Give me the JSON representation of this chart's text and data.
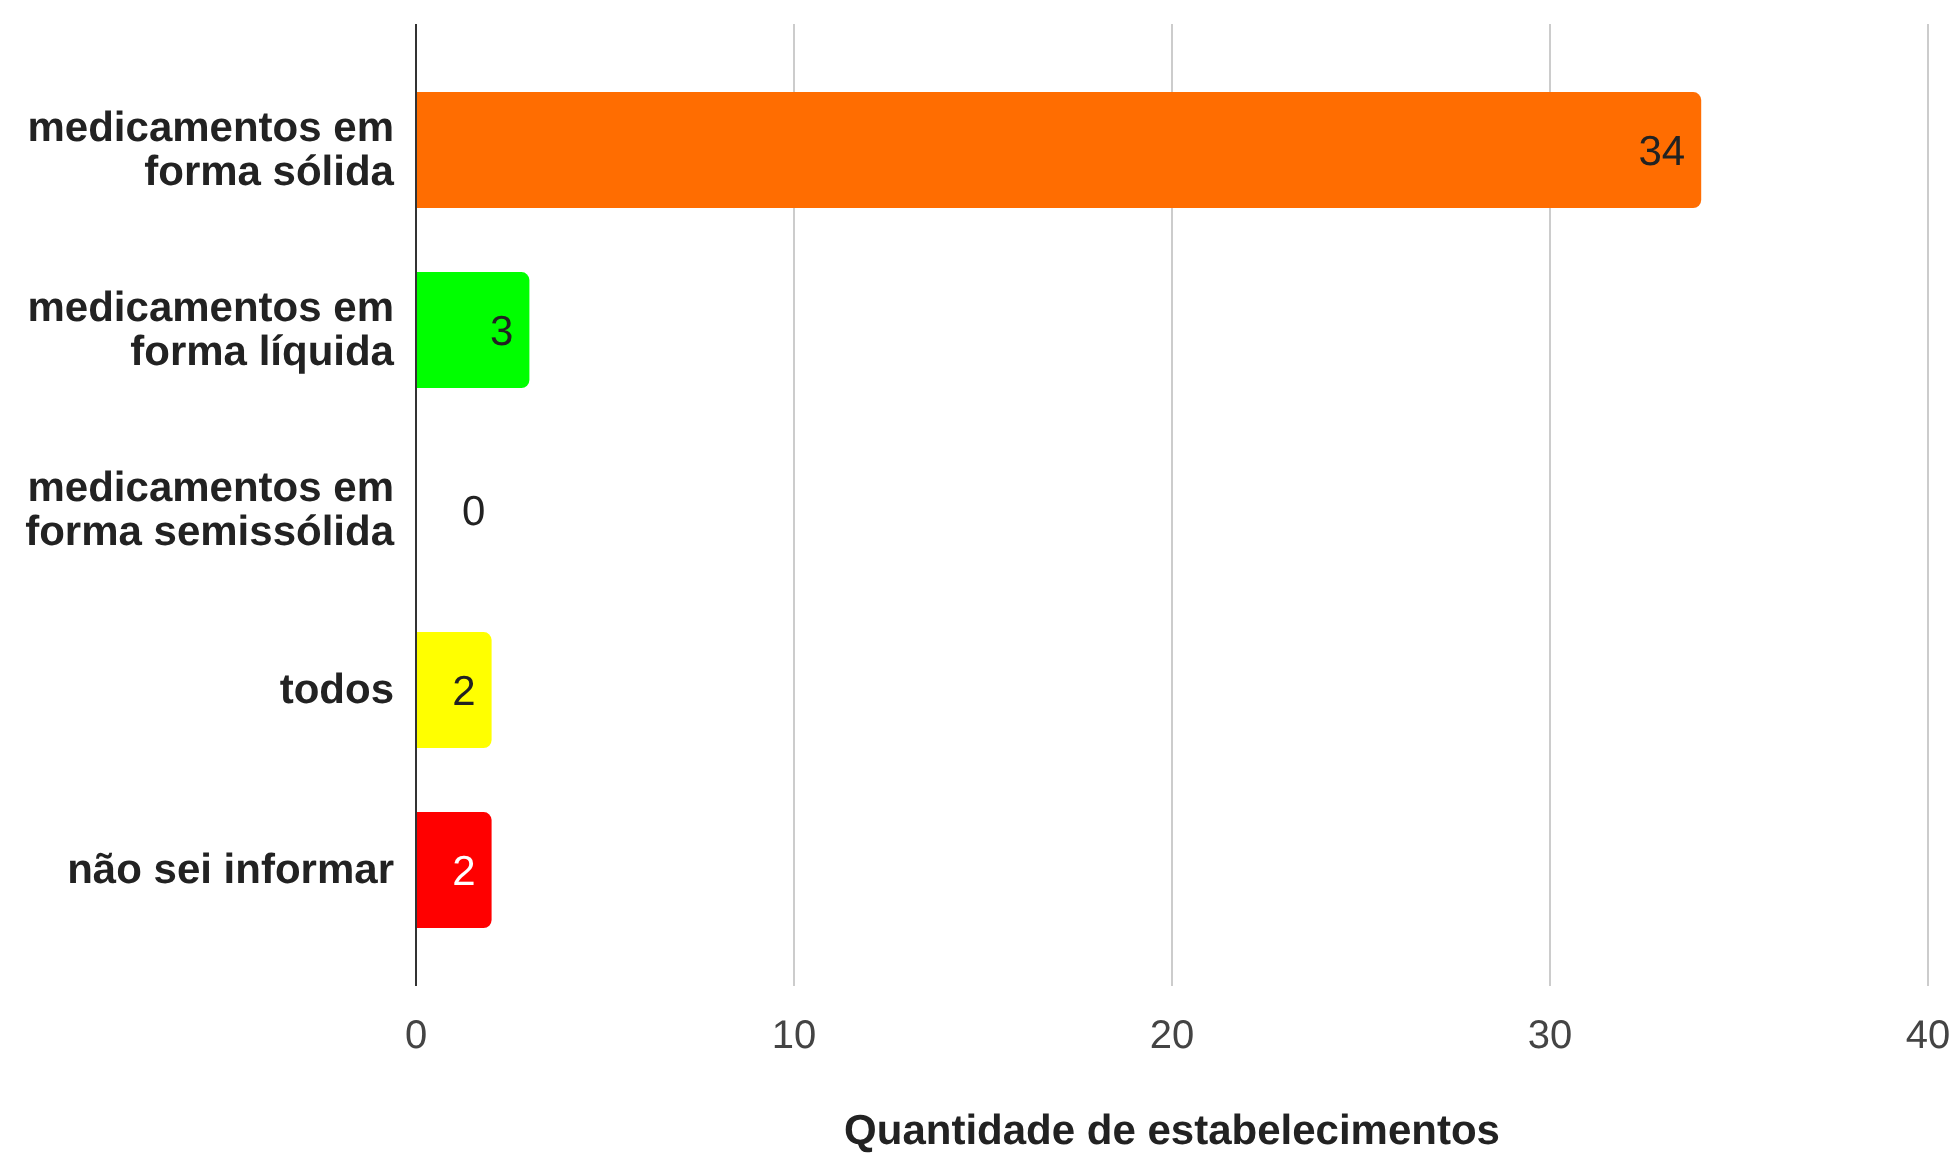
{
  "chart_data": {
    "type": "bar",
    "orientation": "horizontal",
    "categories": [
      "medicamentos em forma sólida",
      "medicamentos em forma líquida",
      "medicamentos em forma semissólida",
      "todos",
      "não sei informar"
    ],
    "values": [
      34,
      3,
      0,
      2,
      2
    ],
    "colors": [
      "#ff6d01",
      "#00ff00",
      null,
      "#ffff00",
      "#ff0000"
    ],
    "xlabel": "Quantidade de estabelecimentos",
    "xlim": [
      0,
      40
    ],
    "xticks": [
      0,
      10,
      20,
      30,
      40
    ],
    "grid": "x",
    "data_labels": true
  }
}
